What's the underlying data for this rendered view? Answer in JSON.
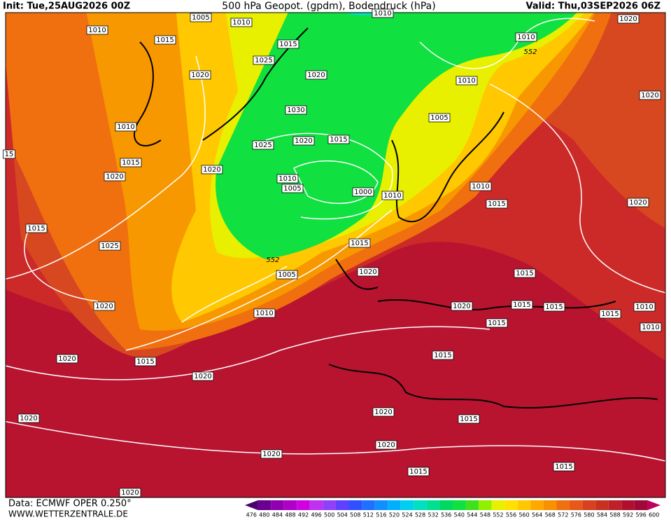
{
  "header": {
    "init": "Init: Tue,25AUG2026 00Z",
    "title": "500 hPa Geopot. (gpdm), Bodendruck (hPa)",
    "valid": "Valid: Thu,03SEP2026 06Z"
  },
  "footer": {
    "source": "Data: ECMWF OPER 0.250°",
    "site": "WWW.WETTERZENTRALE.DE"
  },
  "isobar_labels": [
    "1005",
    "1010",
    "1010",
    "1010",
    "1015",
    "1015",
    "1025",
    "1020",
    "1020",
    "1010",
    "552",
    "1020",
    "1010",
    "1020",
    "1030",
    "1005",
    "1010",
    "1020",
    "1015",
    "1025",
    "15",
    "1015",
    "1020",
    "1020",
    "1010",
    "1005",
    "1000",
    "1010",
    "1010",
    "1015",
    "1020",
    "1015",
    "1025",
    "1015",
    "552",
    "1005",
    "1020",
    "1015",
    "1020",
    "1010",
    "1020",
    "1015",
    "1015",
    "1015",
    "1010",
    "1010",
    "1015",
    "1020",
    "1015",
    "1020",
    "1015",
    "1020",
    "1015",
    "1020",
    "1020",
    "1020",
    "1015",
    "1015",
    "1020"
  ],
  "scale": {
    "labels": [
      476,
      480,
      484,
      488,
      492,
      496,
      500,
      504,
      508,
      512,
      516,
      520,
      524,
      528,
      532,
      536,
      540,
      544,
      548,
      552,
      556,
      560,
      564,
      568,
      572,
      576,
      580,
      584,
      588,
      592,
      596,
      600
    ],
    "colors": [
      "#4b0070",
      "#6a0090",
      "#9000b0",
      "#b000c8",
      "#d000e0",
      "#c030f0",
      "#9040f8",
      "#6040ff",
      "#3050ff",
      "#2070ff",
      "#1090ff",
      "#00b0ff",
      "#00d0f0",
      "#00e0c0",
      "#00e090",
      "#00d860",
      "#10e040",
      "#40e020",
      "#90f000",
      "#e8f000",
      "#ffe000",
      "#ffc800",
      "#ffa800",
      "#f89000",
      "#f07010",
      "#e85818",
      "#d84020",
      "#c83020",
      "#c02028",
      "#b01030",
      "#a00838",
      "#c00060"
    ]
  }
}
